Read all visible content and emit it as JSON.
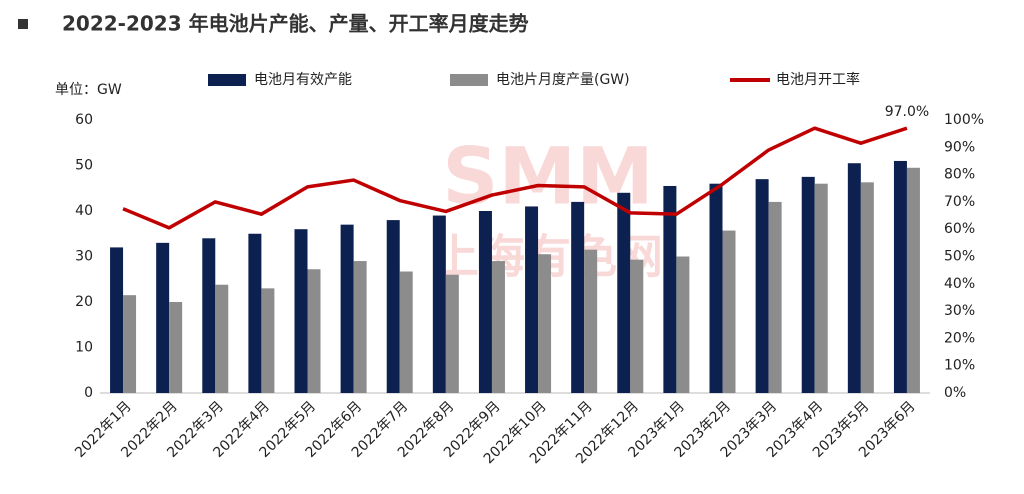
{
  "chart_data": {
    "type": "bar-line",
    "title": "2022-2023 年电池片产能、产量、开工率月度走势",
    "y_label": "单位：GW",
    "watermark": [
      "SMM",
      "上海有色网"
    ],
    "categories": [
      "2022年1月",
      "2022年2月",
      "2022年3月",
      "2022年4月",
      "2022年5月",
      "2022年6月",
      "2022年7月",
      "2022年8月",
      "2022年9月",
      "2022年10月",
      "2022年11月",
      "2022年12月",
      "2023年1月",
      "2023年2月",
      "2023年3月",
      "2023年4月",
      "2023年5月",
      "2023年6月"
    ],
    "series": [
      {
        "name": "电池月有效产能",
        "type": "bar",
        "color": "#0d2150",
        "values": [
          32,
          33,
          34,
          35,
          36,
          37,
          38,
          39,
          40,
          41,
          42,
          44,
          45.5,
          46,
          47,
          47.5,
          50.5,
          51
        ]
      },
      {
        "name": "电池片月度产量(GW)",
        "type": "bar",
        "color": "#8c8c8c",
        "values": [
          21.5,
          20,
          23.8,
          23,
          27.2,
          29,
          26.7,
          26,
          29,
          30.5,
          31.5,
          29.3,
          30,
          35.7,
          42,
          46,
          46.3,
          49.5
        ]
      },
      {
        "name": "电池月开工率",
        "type": "line",
        "axis": "y2",
        "color": "#c00000",
        "values": [
          67.5,
          60.5,
          70,
          65.5,
          75.5,
          78,
          70.5,
          66.5,
          72.5,
          76,
          75.5,
          66,
          65.5,
          76.5,
          89,
          97,
          91.5,
          97
        ],
        "value_labels": [
          null,
          null,
          null,
          null,
          null,
          null,
          null,
          null,
          null,
          null,
          null,
          null,
          null,
          null,
          null,
          null,
          null,
          "97.0%"
        ]
      }
    ],
    "ylim": [
      0,
      60
    ],
    "yticks": [
      0,
      10,
      20,
      30,
      40,
      50,
      60
    ],
    "y2lim": [
      0,
      100
    ],
    "y2ticks": [
      {
        "value": 0,
        "label": "0%"
      },
      {
        "value": 10,
        "label": "10%"
      },
      {
        "value": 20,
        "label": "20%"
      },
      {
        "value": 30,
        "label": "30%"
      },
      {
        "value": 40,
        "label": "40%"
      },
      {
        "value": 50,
        "label": "50%"
      },
      {
        "value": 60,
        "label": "60%"
      },
      {
        "value": 70,
        "label": "70%"
      },
      {
        "value": 80,
        "label": "80%"
      },
      {
        "value": 90,
        "label": "90%"
      },
      {
        "value": 100,
        "label": "100%"
      }
    ]
  }
}
